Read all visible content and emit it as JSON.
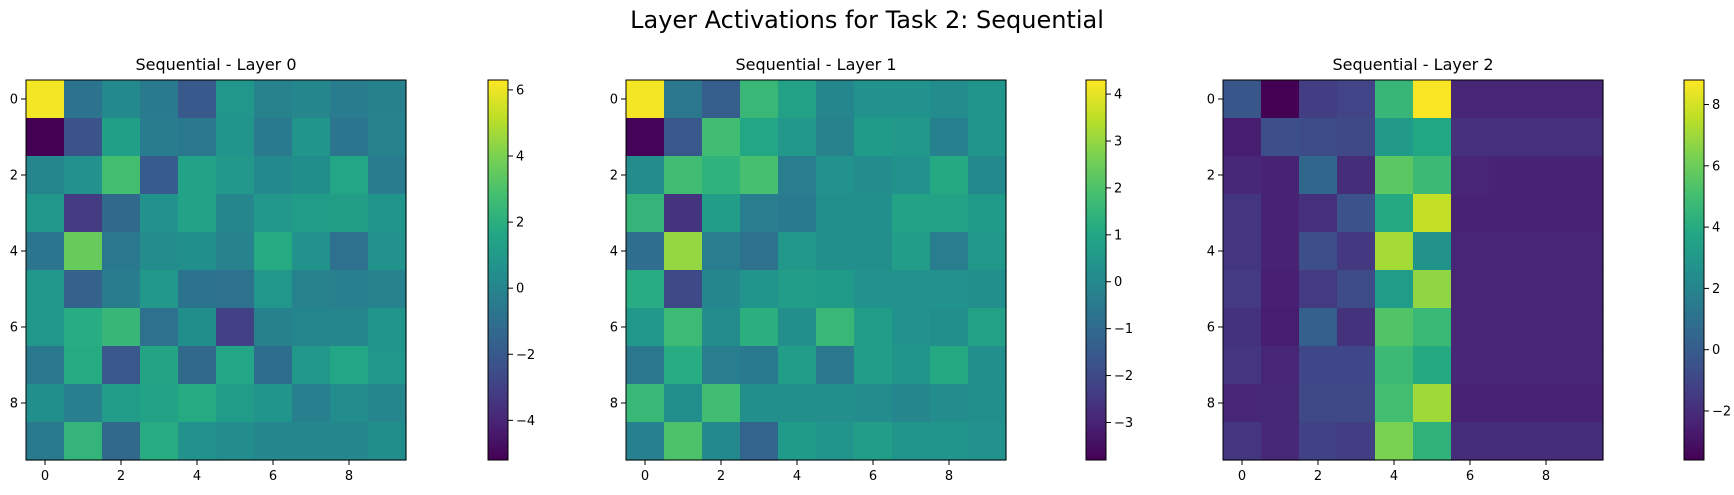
{
  "figure": {
    "title": "Layer Activations for Task 2: Sequential"
  },
  "chart_data": [
    {
      "type": "heatmap",
      "title": "Sequential - Layer 0",
      "colormap": "viridis",
      "xlabel": "",
      "ylabel": "",
      "x_ticks": [
        "0",
        "2",
        "4",
        "6",
        "8"
      ],
      "y_ticks": [
        "0",
        "2",
        "4",
        "6",
        "8"
      ],
      "colorbar": {
        "vmin": -5.2,
        "vmax": 6.3,
        "ticks": [
          "6",
          "4",
          "2",
          "0",
          "−2",
          "−4"
        ]
      },
      "values": [
        [
          6.1,
          -0.8,
          0.2,
          -0.5,
          -2.0,
          0.8,
          -0.1,
          0.1,
          -0.4,
          -0.2
        ],
        [
          -5.2,
          -2.2,
          1.3,
          -0.4,
          -0.6,
          0.7,
          -0.5,
          0.7,
          -0.7,
          -0.1
        ],
        [
          0.0,
          0.6,
          2.8,
          -1.9,
          1.4,
          0.9,
          0.2,
          0.4,
          1.6,
          -0.4
        ],
        [
          0.8,
          -3.2,
          -1.3,
          0.6,
          1.4,
          0.1,
          0.9,
          1.1,
          1.2,
          0.7
        ],
        [
          -0.7,
          3.6,
          -0.6,
          0.3,
          0.5,
          -0.1,
          1.8,
          0.6,
          -0.9,
          0.6
        ],
        [
          0.8,
          -1.6,
          -0.4,
          0.9,
          -0.8,
          -0.9,
          0.8,
          -0.1,
          -0.3,
          -0.1
        ],
        [
          0.8,
          1.9,
          2.4,
          -0.9,
          0.4,
          -3.0,
          -0.2,
          0.0,
          0.1,
          0.7
        ],
        [
          -0.6,
          1.8,
          -2.1,
          1.5,
          -1.3,
          1.6,
          -1.1,
          0.9,
          1.6,
          0.8
        ],
        [
          0.5,
          -0.3,
          1.1,
          1.4,
          1.8,
          1.1,
          0.7,
          -0.3,
          0.3,
          0.1
        ],
        [
          -0.5,
          2.3,
          -1.3,
          1.9,
          0.6,
          0.3,
          0.1,
          0.1,
          0.1,
          0.4
        ]
      ]
    },
    {
      "type": "heatmap",
      "title": "Sequential - Layer 1",
      "colormap": "viridis",
      "xlabel": "",
      "ylabel": "",
      "x_ticks": [
        "0",
        "2",
        "4",
        "6",
        "8"
      ],
      "y_ticks": [
        "0",
        "2",
        "4",
        "6",
        "8"
      ],
      "colorbar": {
        "vmin": -3.8,
        "vmax": 4.3,
        "ticks": [
          "4",
          "3",
          "2",
          "1",
          "0",
          "−1",
          "−2",
          "−3"
        ]
      },
      "values": [
        [
          4.2,
          -0.6,
          -1.4,
          1.6,
          0.8,
          -0.1,
          0.3,
          0.3,
          0.1,
          0.4
        ],
        [
          -3.7,
          -1.6,
          1.8,
          1.0,
          0.5,
          -0.2,
          0.6,
          0.5,
          -0.3,
          0.4
        ],
        [
          0.1,
          1.8,
          1.4,
          1.9,
          -0.4,
          0.3,
          0.1,
          0.3,
          1.1,
          0.0
        ],
        [
          1.5,
          -2.6,
          0.7,
          -0.4,
          -0.5,
          0.2,
          0.2,
          0.9,
          0.9,
          0.6
        ],
        [
          -0.9,
          3.0,
          -0.4,
          -0.8,
          0.5,
          0.2,
          0.2,
          0.7,
          -0.4,
          0.5
        ],
        [
          1.2,
          -2.0,
          -0.1,
          0.4,
          0.7,
          0.6,
          0.3,
          0.3,
          0.3,
          0.2
        ],
        [
          0.5,
          1.7,
          0.1,
          1.3,
          0.2,
          1.6,
          0.7,
          0.3,
          0.2,
          0.8
        ],
        [
          -0.6,
          1.2,
          -0.4,
          -0.5,
          0.7,
          -0.6,
          0.7,
          0.4,
          1.1,
          0.2
        ],
        [
          1.6,
          0.2,
          1.8,
          0.2,
          0.2,
          0.2,
          0.1,
          -0.1,
          0.1,
          0.2
        ],
        [
          -0.3,
          2.0,
          0.0,
          -1.2,
          0.6,
          0.4,
          0.7,
          0.4,
          0.4,
          0.3
        ]
      ]
    },
    {
      "type": "heatmap",
      "title": "Sequential - Layer 2",
      "colormap": "viridis",
      "xlabel": "",
      "ylabel": "",
      "x_ticks": [
        "0",
        "2",
        "4",
        "6",
        "8"
      ],
      "y_ticks": [
        "0",
        "2",
        "4",
        "6",
        "8"
      ],
      "colorbar": {
        "vmin": -3.6,
        "vmax": 8.8,
        "ticks": [
          "8",
          "6",
          "4",
          "2",
          "0",
          "−2"
        ]
      },
      "values": [
        [
          -0.3,
          -3.6,
          -1.4,
          -1.1,
          4.6,
          8.7,
          -2.3,
          -2.3,
          -2.3,
          -2.3
        ],
        [
          -2.6,
          -0.6,
          -0.8,
          -0.9,
          3.1,
          3.8,
          -1.9,
          -1.9,
          -1.9,
          -1.9
        ],
        [
          -2.2,
          -2.4,
          0.5,
          -2.0,
          5.6,
          4.8,
          -2.3,
          -2.4,
          -2.4,
          -2.4
        ],
        [
          -1.7,
          -2.4,
          -1.9,
          -0.5,
          3.9,
          7.7,
          -2.4,
          -2.4,
          -2.4,
          -2.4
        ],
        [
          -1.7,
          -2.4,
          -0.6,
          -1.6,
          7.1,
          2.7,
          -2.3,
          -2.3,
          -2.3,
          -2.3
        ],
        [
          -1.5,
          -2.5,
          -1.5,
          -0.8,
          3.2,
          6.7,
          -2.3,
          -2.3,
          -2.3,
          -2.3
        ],
        [
          -1.8,
          -2.6,
          0.1,
          -1.8,
          5.4,
          4.7,
          -2.3,
          -2.3,
          -2.3,
          -2.3
        ],
        [
          -1.7,
          -2.3,
          -1.0,
          -1.0,
          4.8,
          3.9,
          -2.3,
          -2.3,
          -2.3,
          -2.3
        ],
        [
          -2.3,
          -2.2,
          -0.9,
          -0.9,
          5.0,
          7.0,
          -2.4,
          -2.4,
          -2.4,
          -2.4
        ],
        [
          -1.7,
          -2.2,
          -1.2,
          -1.4,
          6.3,
          4.4,
          -2.0,
          -2.0,
          -2.0,
          -2.0
        ]
      ]
    }
  ]
}
